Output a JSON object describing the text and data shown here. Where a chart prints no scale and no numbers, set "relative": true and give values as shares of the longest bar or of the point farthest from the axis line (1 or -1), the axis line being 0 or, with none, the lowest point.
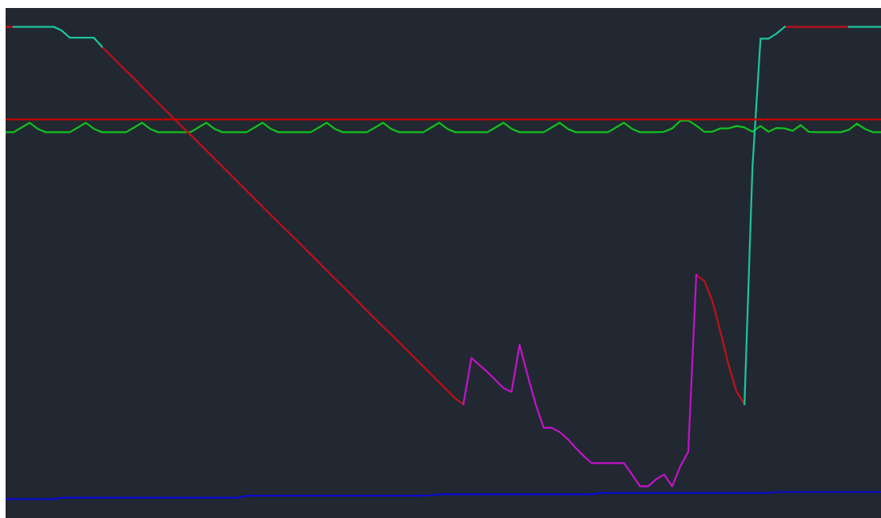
{
  "chart_data": {
    "type": "line",
    "relative": true,
    "tick_labels": false,
    "categories": [
      null,
      null,
      null,
      null,
      null,
      null,
      null,
      null,
      null,
      null,
      null,
      null,
      null,
      null,
      null,
      null,
      null,
      null,
      null,
      null,
      null,
      null,
      null,
      null,
      null,
      null,
      null,
      null,
      null,
      null,
      null,
      null,
      null,
      null,
      null,
      null,
      null,
      null,
      null,
      null,
      null,
      null,
      null,
      null,
      null,
      null,
      null,
      null,
      null,
      null,
      null,
      null,
      null,
      null,
      null,
      null,
      null,
      null,
      null,
      null,
      null,
      null,
      null,
      null,
      null,
      null,
      null,
      null,
      null,
      null,
      null,
      null,
      null,
      null,
      null,
      null,
      null,
      null,
      null,
      null,
      null,
      null,
      null,
      null,
      null,
      null,
      null,
      null,
      null,
      null,
      null,
      null,
      null,
      null,
      null,
      null,
      null,
      null,
      null,
      null,
      null,
      null,
      null,
      null,
      null,
      null,
      null,
      null,
      null,
      null
    ],
    "ref_lines": [
      {
        "axis": "y",
        "value": 0.804,
        "color": "#c80000"
      }
    ],
    "series": [
      {
        "color": "#0a0ad0",
        "values": [
          0,
          0,
          0,
          0,
          0,
          0,
          0,
          0.003,
          0.003,
          0.003,
          0.003,
          0.003,
          0.003,
          0.003,
          0.003,
          0.003,
          0.003,
          0.003,
          0.003,
          0.003,
          0.003,
          0.003,
          0.003,
          0.003,
          0.003,
          0.003,
          0.003,
          0.003,
          0.003,
          0.003,
          0.007,
          0.007,
          0.007,
          0.007,
          0.007,
          0.007,
          0.007,
          0.007,
          0.007,
          0.007,
          0.007,
          0.007,
          0.007,
          0.007,
          0.007,
          0.007,
          0.007,
          0.007,
          0.007,
          0.007,
          0.007,
          0.007,
          0.007,
          0.008,
          0.01,
          0.01,
          0.01,
          0.01,
          0.01,
          0.01,
          0.01,
          0.01,
          0.01,
          0.01,
          0.01,
          0.01,
          0.01,
          0.01,
          0.01,
          0.01,
          0.01,
          0.01,
          0.01,
          0.01,
          0.013,
          0.013,
          0.013,
          0.013,
          0.013,
          0.013,
          0.013,
          0.013,
          0.013,
          0.013,
          0.013,
          0.013,
          0.013,
          0.013,
          0.013,
          0.013,
          0.013,
          0.013,
          0.013,
          0.013,
          0.013,
          0.013,
          0.015,
          0.015,
          0.015,
          0.015,
          0.015,
          0.015,
          0.015,
          0.015,
          0.015,
          0.015,
          0.015,
          0.015,
          0.015,
          0.015
        ]
      },
      {
        "color": "#12c01e",
        "values": [
          0.777,
          0.777,
          0.787,
          0.797,
          0.784,
          0.777,
          0.777,
          0.777,
          0.777,
          0.787,
          0.797,
          0.784,
          0.777,
          0.777,
          0.777,
          0.777,
          0.787,
          0.797,
          0.784,
          0.777,
          0.777,
          0.777,
          0.777,
          0.777,
          0.787,
          0.797,
          0.784,
          0.777,
          0.777,
          0.777,
          0.777,
          0.787,
          0.797,
          0.784,
          0.777,
          0.777,
          0.777,
          0.777,
          0.777,
          0.787,
          0.797,
          0.784,
          0.777,
          0.777,
          0.777,
          0.777,
          0.787,
          0.797,
          0.784,
          0.777,
          0.777,
          0.777,
          0.777,
          0.787,
          0.797,
          0.784,
          0.777,
          0.777,
          0.777,
          0.777,
          0.777,
          0.787,
          0.797,
          0.784,
          0.777,
          0.777,
          0.777,
          0.777,
          0.787,
          0.797,
          0.784,
          0.777,
          0.777,
          0.777,
          0.777,
          0.777,
          0.787,
          0.797,
          0.784,
          0.777,
          0.777,
          0.777,
          0.778,
          0.785,
          0.801,
          0.802,
          0.791,
          0.778,
          0.778,
          0.785,
          0.785,
          0.79,
          0.787,
          0.778,
          0.79,
          0.778,
          0.786,
          0.785,
          0.78,
          0.792,
          0.778,
          0.777,
          0.777,
          0.777,
          0.777,
          0.782,
          0.795,
          0.784,
          0.777,
          0.777
        ]
      },
      {
        "color": "#c0101a",
        "values": [
          1.0,
          1.0,
          null,
          null,
          null,
          null,
          null,
          null,
          null,
          null,
          null,
          null,
          0.958,
          0.941,
          0.924,
          0.907,
          0.891,
          0.873,
          0.856,
          0.839,
          0.822,
          0.805,
          0.788,
          0.772,
          0.755,
          0.738,
          0.721,
          0.704,
          0.687,
          0.67,
          0.653,
          0.636,
          0.619,
          0.602,
          0.585,
          0.569,
          0.552,
          0.535,
          0.518,
          0.501,
          0.484,
          0.467,
          0.45,
          0.433,
          0.416,
          0.399,
          0.382,
          0.365,
          0.349,
          0.332,
          0.315,
          0.298,
          0.281,
          0.264,
          0.247,
          0.23,
          0.213,
          0.201,
          null,
          null,
          null,
          null,
          null,
          null,
          null,
          null,
          null,
          null,
          null,
          null,
          null,
          null,
          null,
          null,
          null,
          null,
          null,
          null,
          null,
          null,
          null,
          null,
          null,
          null,
          null,
          null,
          0.475,
          0.462,
          0.42,
          0.355,
          0.286,
          0.228,
          0.201,
          null,
          null,
          null,
          null,
          1.0,
          1.0,
          1.0,
          1.0,
          1.0,
          1.0,
          1.0,
          1.0,
          1.0,
          null,
          null,
          null,
          null
        ]
      },
      {
        "color": "#1cc4a0",
        "values": [
          null,
          1.0,
          1.0,
          1.0,
          1.0,
          1.0,
          1.0,
          0.992,
          0.977,
          0.977,
          0.977,
          0.977,
          0.958,
          null,
          null,
          null,
          null,
          null,
          null,
          null,
          null,
          null,
          null,
          null,
          null,
          null,
          null,
          null,
          null,
          null,
          null,
          null,
          null,
          null,
          null,
          null,
          null,
          null,
          null,
          null,
          null,
          null,
          null,
          null,
          null,
          null,
          null,
          null,
          null,
          null,
          null,
          null,
          null,
          null,
          null,
          null,
          null,
          null,
          null,
          null,
          null,
          null,
          null,
          null,
          null,
          null,
          null,
          null,
          null,
          null,
          null,
          null,
          null,
          null,
          null,
          null,
          null,
          null,
          null,
          null,
          null,
          null,
          null,
          null,
          null,
          null,
          null,
          null,
          null,
          null,
          null,
          null,
          0.201,
          0.704,
          0.975,
          0.975,
          0.986,
          1.0,
          null,
          null,
          null,
          null,
          null,
          null,
          null,
          1.0,
          1.0,
          1.0,
          1.0,
          1.0
        ]
      },
      {
        "color": "#c014c8",
        "values": [
          null,
          null,
          null,
          null,
          null,
          null,
          null,
          null,
          null,
          null,
          null,
          null,
          null,
          null,
          null,
          null,
          null,
          null,
          null,
          null,
          null,
          null,
          null,
          null,
          null,
          null,
          null,
          null,
          null,
          null,
          null,
          null,
          null,
          null,
          null,
          null,
          null,
          null,
          null,
          null,
          null,
          null,
          null,
          null,
          null,
          null,
          null,
          null,
          null,
          null,
          null,
          null,
          null,
          null,
          null,
          null,
          null,
          0.201,
          0.299,
          0.284,
          0.269,
          0.252,
          0.235,
          0.227,
          0.327,
          0.262,
          0.201,
          0.151,
          0.151,
          0.142,
          0.127,
          0.108,
          0.091,
          0.076,
          0.076,
          0.076,
          0.076,
          0.076,
          0.052,
          0.027,
          0.027,
          0.042,
          0.052,
          0.027,
          0.069,
          0.1,
          0.475,
          null,
          null,
          null,
          null,
          null,
          null,
          null,
          null,
          null,
          null,
          null,
          null,
          null,
          null,
          null,
          null,
          null,
          null,
          null,
          null,
          null,
          null,
          null
        ]
      }
    ]
  }
}
